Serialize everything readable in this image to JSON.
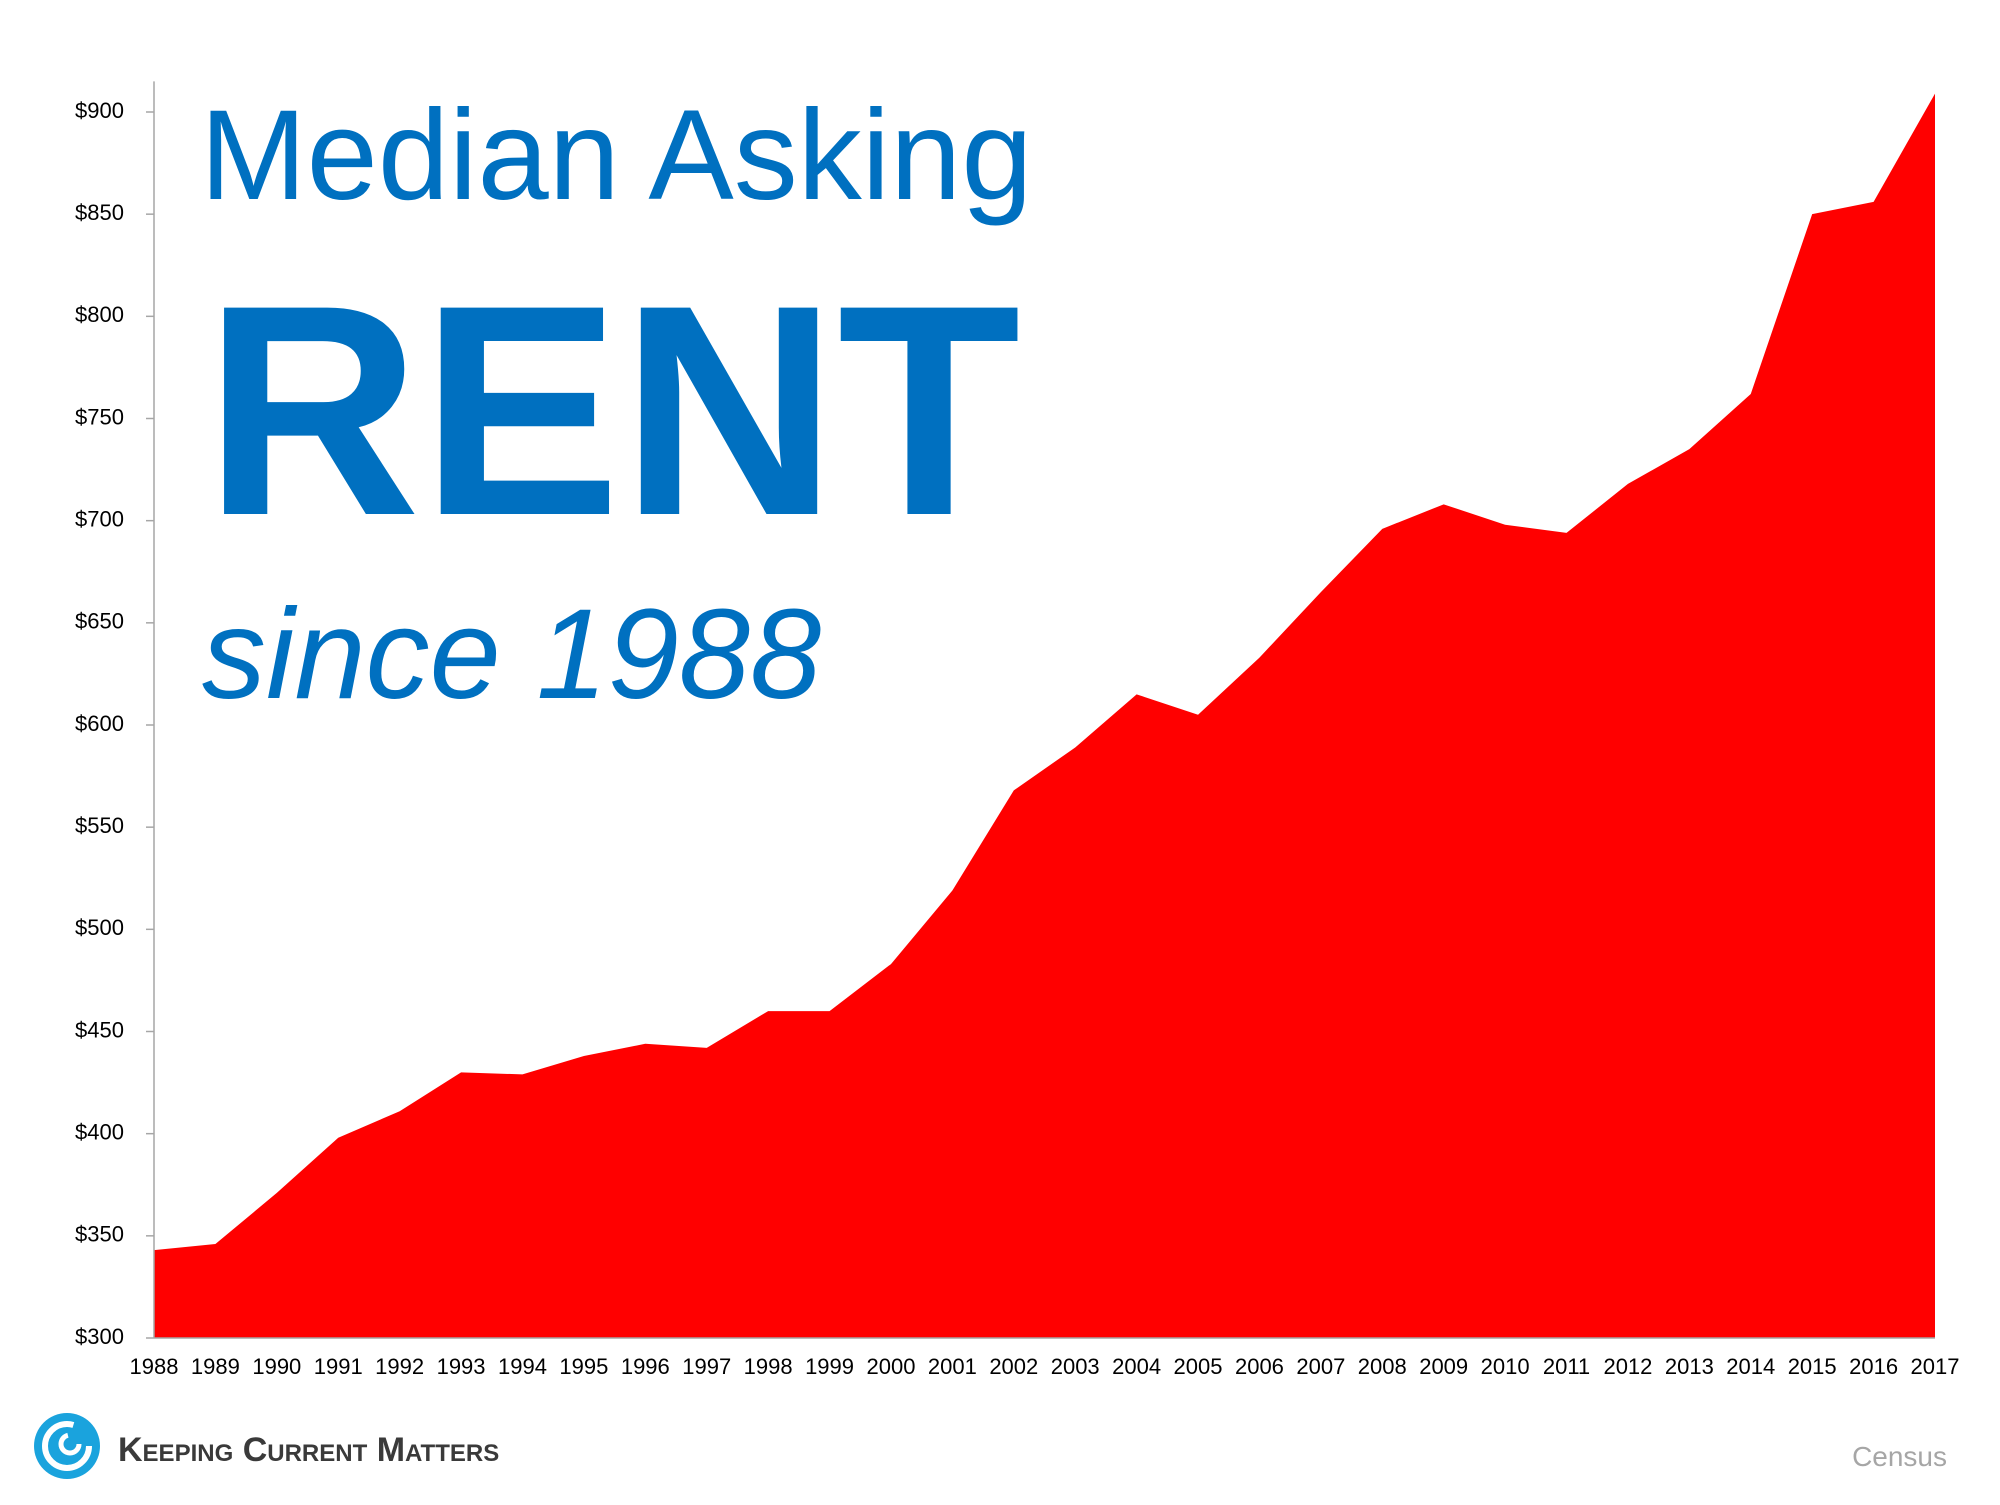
{
  "chart_data": {
    "type": "area",
    "title": "Median Asking",
    "headline": "RENT",
    "subtitle": "since 1988",
    "categories": [
      "1988",
      "1989",
      "1990",
      "1991",
      "1992",
      "1993",
      "1994",
      "1995",
      "1996",
      "1997",
      "1998",
      "1999",
      "2000",
      "2001",
      "2002",
      "2003",
      "2004",
      "2005",
      "2006",
      "2007",
      "2008",
      "2009",
      "2010",
      "2011",
      "2012",
      "2013",
      "2014",
      "2015",
      "2016",
      "2017"
    ],
    "values": [
      343,
      346,
      371,
      398,
      411,
      430,
      429,
      438,
      444,
      442,
      460,
      460,
      483,
      519,
      568,
      589,
      615,
      605,
      633,
      665,
      696,
      708,
      698,
      694,
      718,
      735,
      762,
      850,
      856,
      909
    ],
    "color": "#ff0000",
    "ylim": [
      300,
      915
    ],
    "yticks": [
      {
        "value": 300,
        "label": "$300"
      },
      {
        "value": 350,
        "label": "$350"
      },
      {
        "value": 400,
        "label": "$400"
      },
      {
        "value": 450,
        "label": "$450"
      },
      {
        "value": 500,
        "label": "$500"
      },
      {
        "value": 550,
        "label": "$550"
      },
      {
        "value": 600,
        "label": "$600"
      },
      {
        "value": 650,
        "label": "$650"
      },
      {
        "value": 700,
        "label": "$700"
      },
      {
        "value": 750,
        "label": "$750"
      },
      {
        "value": 800,
        "label": "$800"
      },
      {
        "value": 850,
        "label": "$850"
      },
      {
        "value": 900,
        "label": "$900"
      }
    ],
    "grid": false,
    "brand": "Keeping Current Matters",
    "source": "Census"
  }
}
